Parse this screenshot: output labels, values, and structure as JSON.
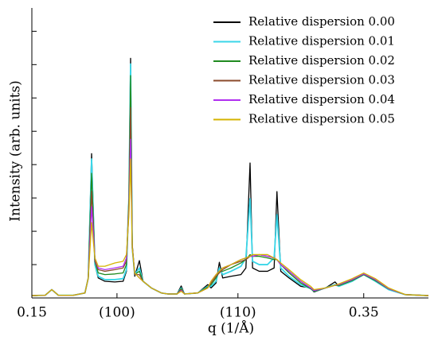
{
  "chart_data": {
    "type": "line",
    "xlabel": "q (1/Å)",
    "ylabel": "Intensity (arb. units)",
    "x": [
      0.15,
      0.158,
      0.162,
      0.166,
      0.175,
      0.182,
      0.184,
      0.186,
      0.188,
      0.19,
      0.194,
      0.2,
      0.205,
      0.207,
      0.2085,
      0.2095,
      0.2105,
      0.212,
      0.2148,
      0.217,
      0.222,
      0.228,
      0.232,
      0.2375,
      0.24,
      0.242,
      0.25,
      0.256,
      0.258,
      0.261,
      0.263,
      0.265,
      0.27,
      0.276,
      0.279,
      0.2815,
      0.283,
      0.287,
      0.292,
      0.296,
      0.2977,
      0.3,
      0.305,
      0.312,
      0.318,
      0.32,
      0.327,
      0.3327,
      0.335,
      0.343,
      0.35,
      0.357,
      0.365,
      0.375,
      0.389
    ],
    "series": [
      {
        "name": "Relative dispersion 0.00",
        "color": "#000000",
        "values": [
          0.07,
          0.08,
          0.25,
          0.08,
          0.08,
          0.15,
          0.6,
          4.33,
          1.0,
          0.6,
          0.5,
          0.48,
          0.5,
          0.8,
          3.0,
          7.19,
          1.5,
          0.65,
          1.12,
          0.5,
          0.3,
          0.15,
          0.12,
          0.12,
          0.36,
          0.12,
          0.15,
          0.4,
          0.3,
          0.45,
          1.07,
          0.6,
          0.65,
          0.7,
          0.9,
          4.05,
          0.9,
          0.8,
          0.8,
          0.9,
          3.19,
          0.8,
          0.6,
          0.35,
          0.3,
          0.18,
          0.3,
          0.48,
          0.35,
          0.5,
          0.71,
          0.5,
          0.25,
          0.1,
          0.07
        ]
      },
      {
        "name": "Relative dispersion 0.01",
        "color": "#3ad6e8",
        "values": [
          0.07,
          0.08,
          0.25,
          0.08,
          0.08,
          0.15,
          0.6,
          4.17,
          1.0,
          0.65,
          0.55,
          0.55,
          0.58,
          0.85,
          3.0,
          7.02,
          1.5,
          0.7,
          0.9,
          0.5,
          0.3,
          0.15,
          0.12,
          0.12,
          0.3,
          0.12,
          0.15,
          0.35,
          0.35,
          0.5,
          0.9,
          0.7,
          0.8,
          0.95,
          1.2,
          2.98,
          1.1,
          1.0,
          1.0,
          1.2,
          2.5,
          0.9,
          0.65,
          0.4,
          0.28,
          0.2,
          0.3,
          0.4,
          0.35,
          0.5,
          0.7,
          0.5,
          0.25,
          0.1,
          0.07
        ]
      },
      {
        "name": "Relative dispersion 0.02",
        "color": "#1f8a1f",
        "values": [
          0.07,
          0.08,
          0.25,
          0.08,
          0.08,
          0.15,
          0.6,
          3.74,
          1.1,
          0.75,
          0.7,
          0.72,
          0.75,
          1.0,
          3.0,
          6.67,
          1.6,
          0.7,
          0.8,
          0.5,
          0.3,
          0.15,
          0.12,
          0.12,
          0.28,
          0.12,
          0.15,
          0.33,
          0.4,
          0.6,
          0.8,
          0.8,
          0.9,
          1.05,
          1.15,
          1.3,
          1.25,
          1.25,
          1.2,
          1.15,
          1.15,
          1.0,
          0.75,
          0.45,
          0.28,
          0.2,
          0.3,
          0.38,
          0.37,
          0.52,
          0.7,
          0.52,
          0.27,
          0.1,
          0.07
        ]
      },
      {
        "name": "Relative dispersion 0.03",
        "color": "#8b4a2b",
        "values": [
          0.07,
          0.08,
          0.25,
          0.08,
          0.08,
          0.15,
          0.6,
          3.2,
          1.1,
          0.85,
          0.8,
          0.85,
          0.9,
          1.1,
          2.8,
          5.71,
          1.6,
          0.7,
          0.7,
          0.5,
          0.3,
          0.15,
          0.12,
          0.12,
          0.25,
          0.12,
          0.15,
          0.3,
          0.45,
          0.65,
          0.75,
          0.85,
          1.0,
          1.1,
          1.15,
          1.25,
          1.25,
          1.3,
          1.25,
          1.2,
          1.15,
          1.0,
          0.8,
          0.5,
          0.3,
          0.22,
          0.3,
          0.38,
          0.4,
          0.55,
          0.72,
          0.55,
          0.28,
          0.1,
          0.07
        ]
      },
      {
        "name": "Relative dispersion 0.04",
        "color": "#b02ef0",
        "values": [
          0.07,
          0.08,
          0.25,
          0.08,
          0.08,
          0.15,
          0.6,
          2.74,
          1.2,
          0.9,
          0.85,
          0.9,
          0.95,
          1.2,
          2.6,
          4.76,
          1.5,
          0.75,
          0.6,
          0.5,
          0.3,
          0.15,
          0.12,
          0.12,
          0.22,
          0.12,
          0.15,
          0.3,
          0.5,
          0.7,
          0.8,
          0.9,
          1.0,
          1.15,
          1.2,
          1.25,
          1.25,
          1.3,
          1.25,
          1.2,
          1.15,
          1.0,
          0.8,
          0.5,
          0.3,
          0.22,
          0.3,
          0.38,
          0.4,
          0.55,
          0.72,
          0.55,
          0.28,
          0.1,
          0.07
        ]
      },
      {
        "name": "Relative dispersion 0.05",
        "color": "#d4b300",
        "values": [
          0.07,
          0.08,
          0.25,
          0.08,
          0.08,
          0.15,
          0.6,
          2.26,
          1.2,
          0.95,
          0.95,
          1.05,
          1.1,
          1.3,
          2.5,
          4.17,
          1.5,
          0.75,
          0.6,
          0.5,
          0.3,
          0.15,
          0.12,
          0.12,
          0.2,
          0.12,
          0.15,
          0.3,
          0.5,
          0.7,
          0.8,
          0.9,
          1.0,
          1.15,
          1.2,
          1.25,
          1.3,
          1.3,
          1.3,
          1.2,
          1.15,
          1.05,
          0.85,
          0.55,
          0.35,
          0.25,
          0.3,
          0.38,
          0.42,
          0.58,
          0.75,
          0.58,
          0.3,
          0.1,
          0.07
        ]
      }
    ],
    "xlim": [
      0.15,
      0.389
    ],
    "xticks": [
      0.15,
      {
        "value": 0.2013,
        "label": "(100)"
      },
      {
        "value": 0.2742,
        "label": "(110)"
      },
      0.35
    ],
    "ylim": [
      0,
      8.7
    ],
    "yticks": [
      0,
      1,
      2,
      3,
      4,
      5,
      6,
      7,
      8
    ],
    "legend": "upper right"
  }
}
